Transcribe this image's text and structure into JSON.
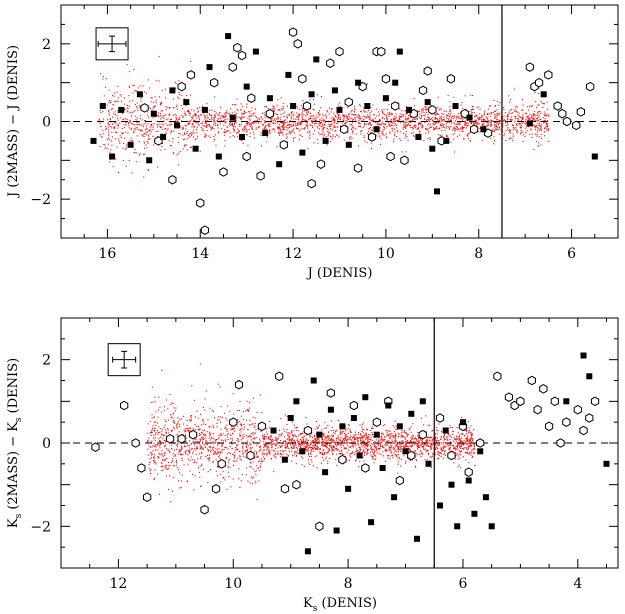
{
  "colors": {
    "background": "#ffffff",
    "axis": "#000000",
    "bulk": "#ff0000",
    "marker": "#000000"
  },
  "chart_data": [
    {
      "type": "scatter",
      "title": "",
      "xlabel": "J (DENIS)",
      "ylabel": "J (2MASS) − J (DENIS)",
      "xlim": [
        17,
        5
      ],
      "ylim": [
        -3,
        3
      ],
      "x_ticks": [
        16,
        14,
        12,
        10,
        8,
        6
      ],
      "y_ticks": [
        -2,
        0,
        2
      ],
      "vertical_line_x": 7.5,
      "reference_line_y": 0,
      "grid": false,
      "legend": "none",
      "error_cross": {
        "x": 15.9,
        "y": 2.0,
        "dx": 0.3,
        "dy": 0.2
      },
      "bulk_cloud": {
        "x_range": [
          6.5,
          16.2
        ],
        "y_center": 0.0,
        "spread": 0.25
      },
      "series": [
        {
          "marker": "open-hexagon",
          "points": [
            [
              15.2,
              0.35
            ],
            [
              14.9,
              -0.5
            ],
            [
              14.6,
              -1.5
            ],
            [
              14.4,
              0.9
            ],
            [
              14.2,
              1.2
            ],
            [
              14.0,
              -2.1
            ],
            [
              13.9,
              -2.8
            ],
            [
              13.7,
              1.0
            ],
            [
              13.5,
              -1.3
            ],
            [
              13.3,
              1.4
            ],
            [
              13.2,
              1.9
            ],
            [
              13.1,
              1.7
            ],
            [
              13.0,
              -0.9
            ],
            [
              12.9,
              0.6
            ],
            [
              12.7,
              -1.4
            ],
            [
              12.5,
              0.2
            ],
            [
              12.2,
              -0.6
            ],
            [
              12.0,
              2.3
            ],
            [
              11.9,
              2.0
            ],
            [
              11.8,
              1.1
            ],
            [
              11.7,
              0.4
            ],
            [
              11.6,
              -1.6
            ],
            [
              11.4,
              -1.1
            ],
            [
              11.2,
              1.5
            ],
            [
              11.0,
              1.8
            ],
            [
              10.9,
              -0.2
            ],
            [
              10.8,
              0.5
            ],
            [
              10.6,
              -1.2
            ],
            [
              10.5,
              0.9
            ],
            [
              10.3,
              -0.4
            ],
            [
              10.2,
              1.8
            ],
            [
              10.1,
              1.8
            ],
            [
              10.0,
              1.1
            ],
            [
              9.9,
              -0.9
            ],
            [
              9.8,
              0.4
            ],
            [
              9.6,
              -1.0
            ],
            [
              9.4,
              0.2
            ],
            [
              9.2,
              0.8
            ],
            [
              9.1,
              1.3
            ],
            [
              9.0,
              0.3
            ],
            [
              8.8,
              -0.5
            ],
            [
              8.6,
              1.1
            ],
            [
              8.3,
              0.2
            ],
            [
              8.1,
              -0.2
            ],
            [
              7.8,
              -0.3
            ],
            [
              6.9,
              1.4
            ],
            [
              6.8,
              0.9
            ],
            [
              6.7,
              1.0
            ],
            [
              6.5,
              1.2
            ],
            [
              6.3,
              0.4
            ],
            [
              6.2,
              0.2
            ],
            [
              6.1,
              0.0
            ],
            [
              5.9,
              -0.1
            ],
            [
              5.8,
              0.25
            ],
            [
              5.6,
              0.9
            ]
          ]
        },
        {
          "marker": "filled-square",
          "points": [
            [
              16.3,
              -0.5
            ],
            [
              16.1,
              0.4
            ],
            [
              15.9,
              -0.9
            ],
            [
              15.7,
              0.3
            ],
            [
              15.5,
              -0.6
            ],
            [
              15.3,
              0.7
            ],
            [
              15.1,
              -1.0
            ],
            [
              15.0,
              0.2
            ],
            [
              14.8,
              -0.4
            ],
            [
              14.6,
              0.8
            ],
            [
              14.5,
              -0.1
            ],
            [
              14.3,
              0.5
            ],
            [
              14.1,
              -0.7
            ],
            [
              13.9,
              0.3
            ],
            [
              13.8,
              1.4
            ],
            [
              13.6,
              -0.9
            ],
            [
              13.4,
              2.2
            ],
            [
              13.3,
              0.1
            ],
            [
              13.1,
              -0.4
            ],
            [
              13.0,
              0.9
            ],
            [
              12.8,
              1.8
            ],
            [
              12.6,
              -0.3
            ],
            [
              12.5,
              0.6
            ],
            [
              12.3,
              -1.1
            ],
            [
              12.1,
              1.2
            ],
            [
              12.0,
              0.4
            ],
            [
              11.8,
              -0.8
            ],
            [
              11.6,
              0.7
            ],
            [
              11.5,
              1.6
            ],
            [
              11.3,
              -0.5
            ],
            [
              11.1,
              0.8
            ],
            [
              11.0,
              0.3
            ],
            [
              10.8,
              -0.6
            ],
            [
              10.6,
              1.0
            ],
            [
              10.4,
              0.4
            ],
            [
              10.2,
              -0.2
            ],
            [
              10.0,
              0.6
            ],
            [
              9.8,
              1.0
            ],
            [
              9.7,
              1.8
            ],
            [
              9.5,
              0.3
            ],
            [
              9.3,
              -0.4
            ],
            [
              9.1,
              0.5
            ],
            [
              9.0,
              -0.7
            ],
            [
              8.9,
              -1.8
            ],
            [
              8.7,
              -0.5
            ],
            [
              8.5,
              0.4
            ],
            [
              8.2,
              0.1
            ],
            [
              7.9,
              -0.2
            ],
            [
              6.6,
              0.7
            ],
            [
              6.9,
              -0.05
            ],
            [
              5.5,
              -0.9
            ]
          ]
        }
      ]
    },
    {
      "type": "scatter",
      "title": "",
      "xlabel": "K",
      "xlabel_sub": "s",
      "xlabel_tail": " (DENIS)",
      "ylabel_a": "K",
      "ylabel_a_sub": "s",
      "ylabel_mid": " (2MASS) − K",
      "ylabel_b_sub": "s",
      "ylabel_tail": " (DENIS)",
      "xlim": [
        13,
        3.3
      ],
      "ylim": [
        -3,
        3
      ],
      "x_ticks": [
        12,
        10,
        8,
        6,
        4
      ],
      "y_ticks": [
        -2,
        0,
        2
      ],
      "vertical_line_x": 6.5,
      "reference_line_y": 0,
      "grid": false,
      "legend": "none",
      "error_cross": {
        "x": 11.9,
        "y": 2.0,
        "dx": 0.2,
        "dy": 0.2
      },
      "bulk_cloud": {
        "x_range": [
          5.8,
          11.5
        ],
        "y_center": 0.0,
        "spread": 0.22
      },
      "series": [
        {
          "marker": "open-hexagon",
          "points": [
            [
              12.4,
              -0.1
            ],
            [
              11.9,
              0.9
            ],
            [
              11.7,
              0.0
            ],
            [
              11.6,
              -0.6
            ],
            [
              11.5,
              -1.3
            ],
            [
              11.1,
              0.1
            ],
            [
              10.9,
              0.1
            ],
            [
              10.7,
              0.2
            ],
            [
              10.5,
              -1.6
            ],
            [
              10.3,
              -1.1
            ],
            [
              10.2,
              -0.5
            ],
            [
              10.0,
              0.5
            ],
            [
              9.9,
              1.4
            ],
            [
              9.7,
              -0.3
            ],
            [
              9.5,
              0.4
            ],
            [
              9.2,
              1.6
            ],
            [
              9.1,
              -1.1
            ],
            [
              8.9,
              -1.0
            ],
            [
              8.7,
              0.3
            ],
            [
              8.5,
              -2.0
            ],
            [
              8.3,
              1.2
            ],
            [
              8.1,
              -0.4
            ],
            [
              7.9,
              0.9
            ],
            [
              7.7,
              -0.6
            ],
            [
              7.5,
              0.5
            ],
            [
              7.3,
              1.0
            ],
            [
              7.1,
              -0.9
            ],
            [
              6.9,
              -0.3
            ],
            [
              6.7,
              0.2
            ],
            [
              6.4,
              0.6
            ],
            [
              6.2,
              -0.3
            ],
            [
              6.0,
              0.4
            ],
            [
              5.9,
              -0.7
            ],
            [
              5.7,
              0.0
            ],
            [
              5.4,
              1.6
            ],
            [
              5.2,
              1.1
            ],
            [
              5.1,
              0.9
            ],
            [
              5.0,
              1.0
            ],
            [
              4.8,
              1.5
            ],
            [
              4.7,
              0.8
            ],
            [
              4.6,
              1.3
            ],
            [
              4.5,
              0.4
            ],
            [
              4.4,
              1.0
            ],
            [
              4.3,
              0.0
            ],
            [
              4.2,
              0.5
            ],
            [
              4.0,
              0.8
            ],
            [
              3.9,
              0.3
            ],
            [
              3.8,
              0.6
            ],
            [
              3.7,
              1.0
            ]
          ]
        },
        {
          "marker": "filled-square",
          "points": [
            [
              9.3,
              0.3
            ],
            [
              9.1,
              -0.4
            ],
            [
              9.0,
              0.6
            ],
            [
              8.9,
              1.0
            ],
            [
              8.8,
              -0.2
            ],
            [
              8.6,
              1.5
            ],
            [
              8.5,
              0.2
            ],
            [
              8.4,
              -0.7
            ],
            [
              8.3,
              0.8
            ],
            [
              8.2,
              -2.1
            ],
            [
              8.1,
              0.4
            ],
            [
              8.0,
              -1.1
            ],
            [
              7.9,
              0.6
            ],
            [
              7.8,
              -0.3
            ],
            [
              7.7,
              1.1
            ],
            [
              7.6,
              -1.9
            ],
            [
              7.5,
              0.2
            ],
            [
              7.4,
              -0.6
            ],
            [
              7.3,
              0.9
            ],
            [
              7.2,
              -1.3
            ],
            [
              7.1,
              0.4
            ],
            [
              7.0,
              -0.2
            ],
            [
              6.9,
              0.7
            ],
            [
              6.8,
              -2.3
            ],
            [
              6.7,
              1.0
            ],
            [
              6.6,
              -0.5
            ],
            [
              6.4,
              -1.5
            ],
            [
              6.3,
              0.3
            ],
            [
              6.2,
              -1.0
            ],
            [
              6.1,
              -2.0
            ],
            [
              6.0,
              0.5
            ],
            [
              5.9,
              -0.9
            ],
            [
              5.8,
              -1.7
            ],
            [
              5.7,
              -0.2
            ],
            [
              5.6,
              -1.3
            ],
            [
              5.5,
              -2.0
            ],
            [
              4.2,
              1.0
            ],
            [
              3.9,
              2.1
            ],
            [
              3.8,
              1.6
            ],
            [
              3.5,
              -0.5
            ],
            [
              8.7,
              -2.6
            ]
          ]
        }
      ]
    }
  ]
}
